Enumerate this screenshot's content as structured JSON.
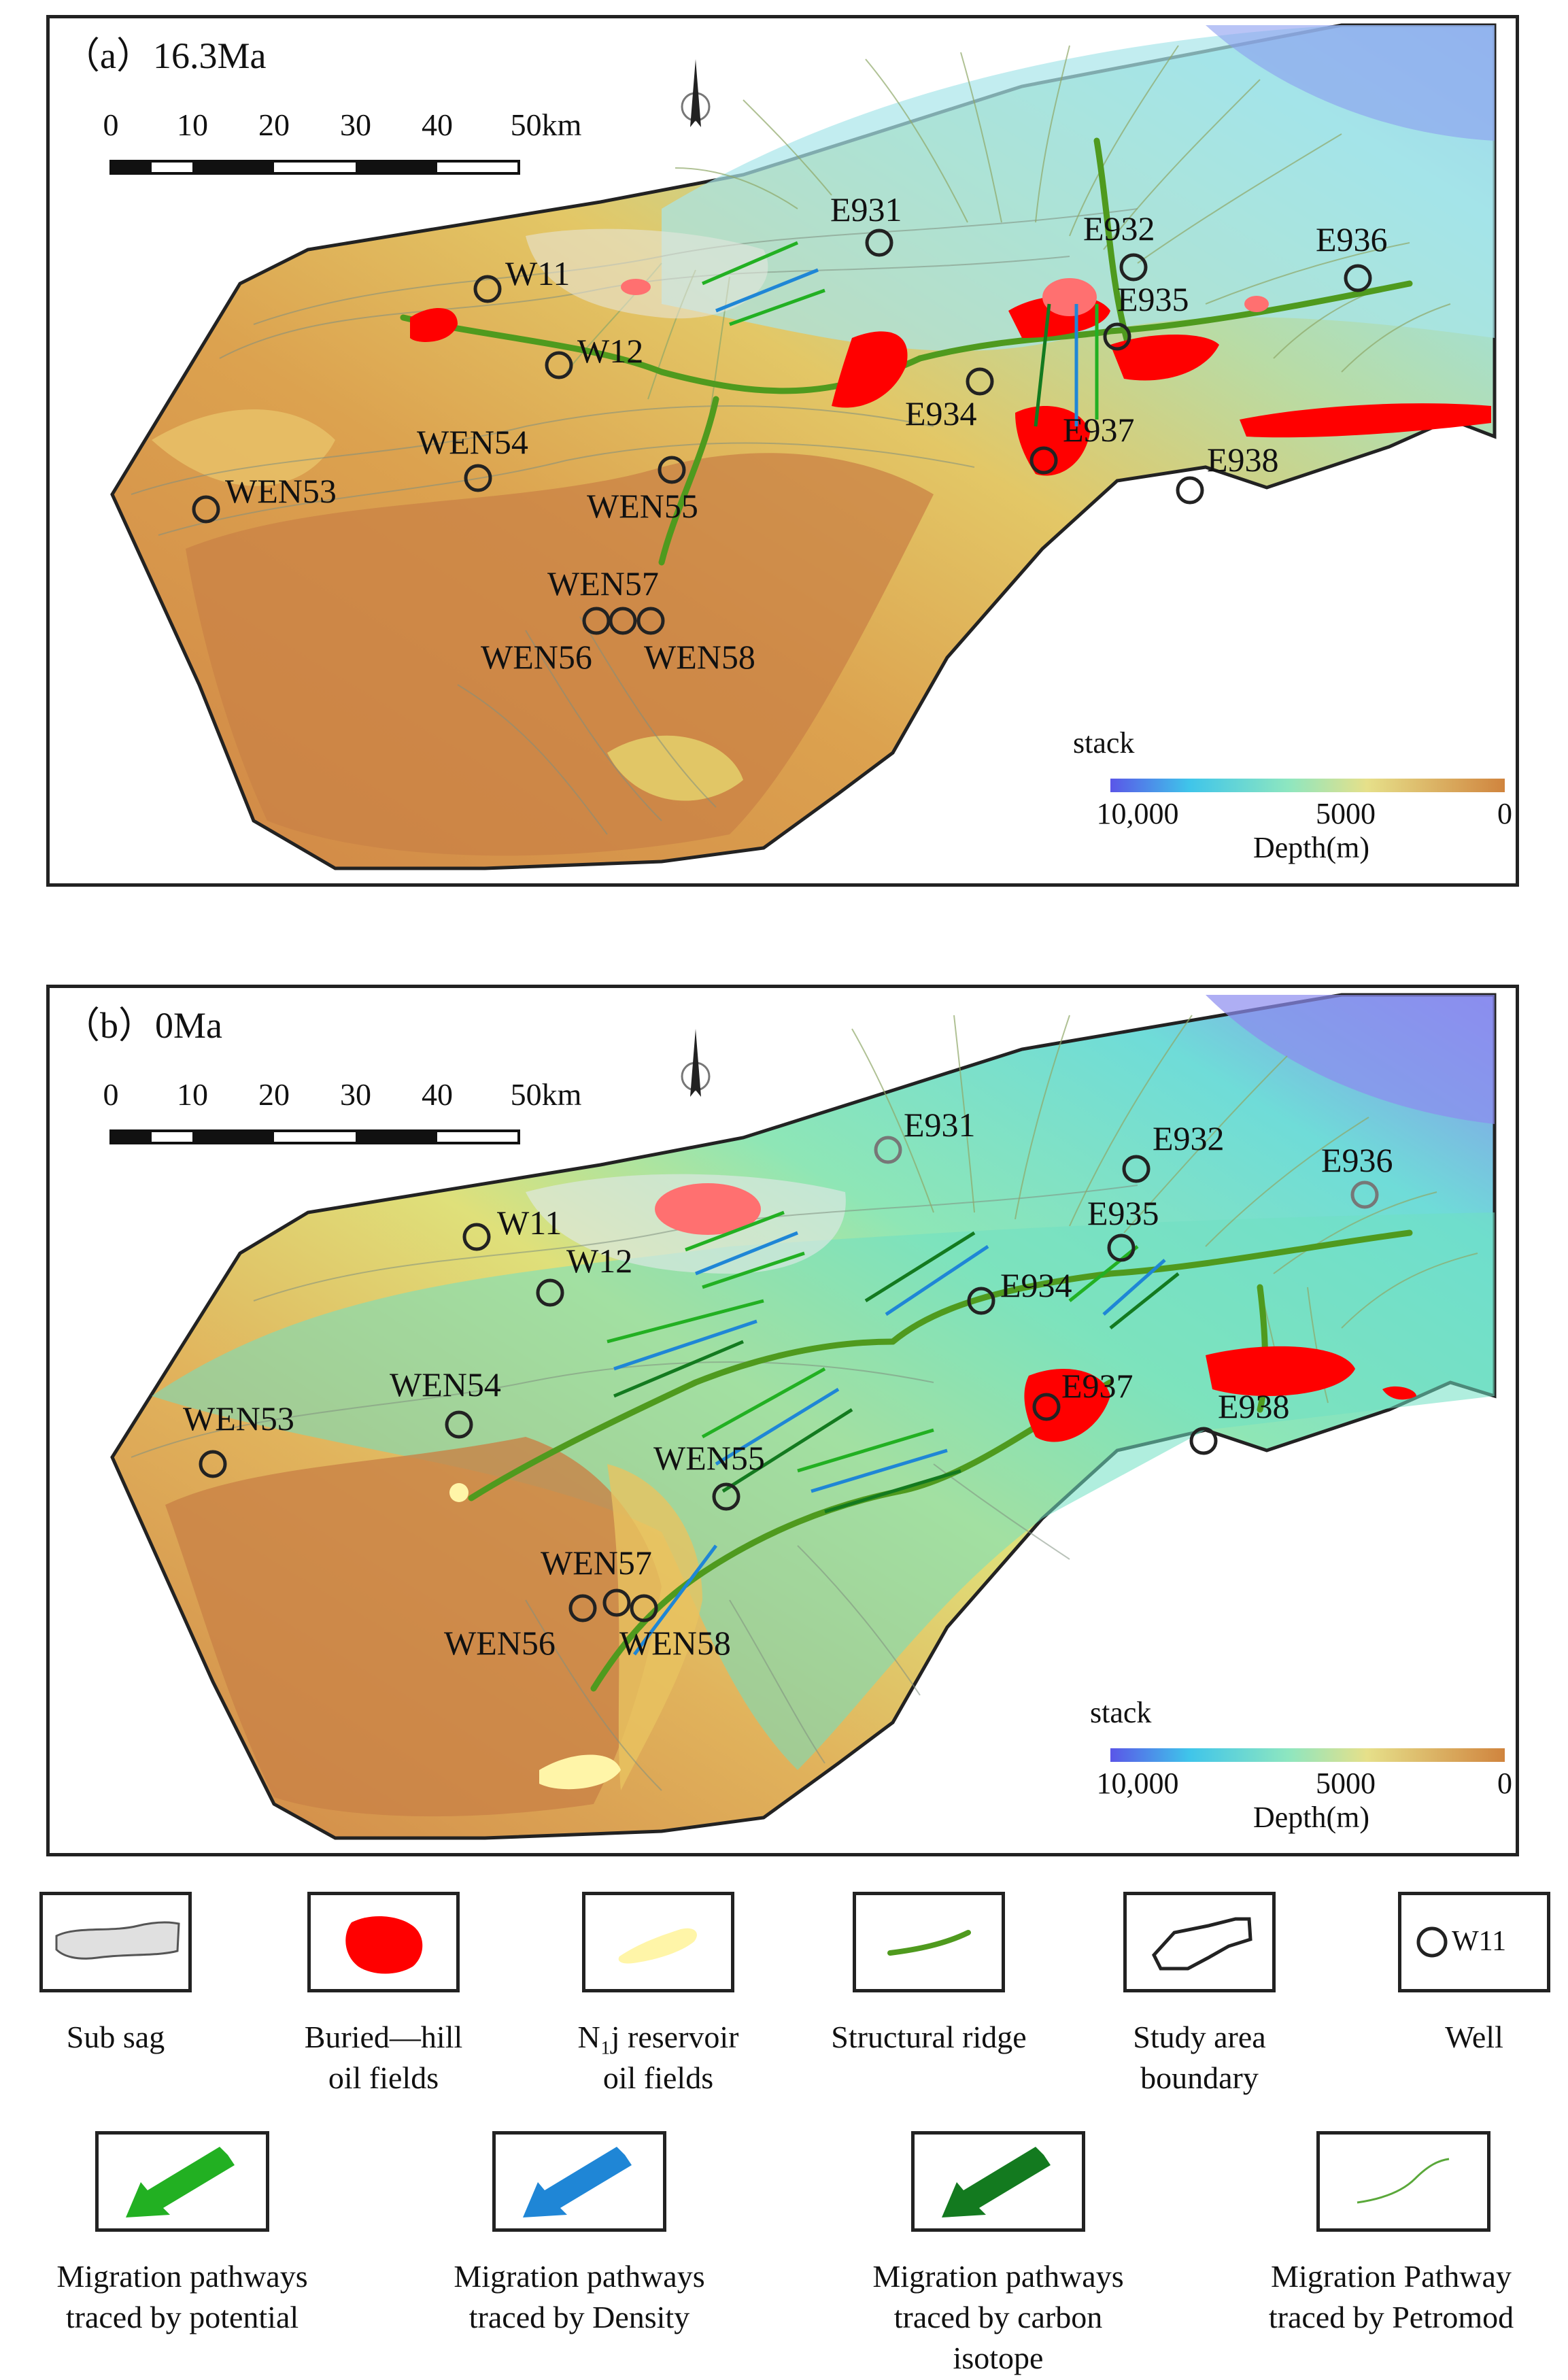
{
  "panels": [
    {
      "id": "a",
      "title": "（a）16.3Ma",
      "scale_ticks": [
        "0",
        "10",
        "20",
        "30",
        "40",
        "50km"
      ],
      "colorbar": {
        "title": "stack",
        "ticks": [
          "10,000",
          "5000",
          "0"
        ],
        "label": "Depth(m)"
      },
      "wells": [
        "WEN53",
        "WEN54",
        "WEN55",
        "WEN56",
        "WEN57",
        "WEN58",
        "W11",
        "W12",
        "E931",
        "E932",
        "E934",
        "E935",
        "E936",
        "E937",
        "E938"
      ]
    },
    {
      "id": "b",
      "title": "（b）0Ma",
      "scale_ticks": [
        "0",
        "10",
        "20",
        "30",
        "40",
        "50km"
      ],
      "colorbar": {
        "title": "stack",
        "ticks": [
          "10,000",
          "5000",
          "0"
        ],
        "label": "Depth(m)"
      },
      "wells": [
        "WEN53",
        "WEN54",
        "WEN55",
        "WEN56",
        "WEN57",
        "WEN58",
        "W11",
        "W12",
        "E931",
        "E932",
        "E934",
        "E935",
        "E936",
        "E937",
        "E938"
      ]
    }
  ],
  "colors": {
    "buried_hill_oil": "#ff0000",
    "nj_reservoir_oil": "#fff5a8",
    "structural_ridge": "#4f9a1e",
    "potential_arrow": "#22b022",
    "density_arrow": "#1f86d6",
    "carbon_isotope_arrow": "#137a1f",
    "petromod_line": "#5aa83a",
    "depth_shallow": "#d4874a",
    "depth_deep": "#6a5ee8"
  },
  "legend": [
    {
      "label": "Sub sag",
      "icon": "sub-sag-icon"
    },
    {
      "label": "Buried—hill\noil fields",
      "icon": "buried-hill-icon"
    },
    {
      "label": "N₁j reservoir\noil fields",
      "icon": "nj-reservoir-icon"
    },
    {
      "label": "Structural ridge",
      "icon": "structural-ridge-icon"
    },
    {
      "label": "Study area\nboundary",
      "icon": "boundary-icon"
    },
    {
      "label": "Well",
      "icon": "well-icon",
      "sample": "W11"
    },
    {
      "label": "Migration pathways\ntraced by potential",
      "icon": "green-arrow-icon"
    },
    {
      "label": "Migration pathways\ntraced by Density",
      "icon": "blue-arrow-icon"
    },
    {
      "label": "Migration pathways\ntraced by carbon\nisotope",
      "icon": "darkgreen-arrow-icon"
    },
    {
      "label": "Migration Pathway\ntraced  by  Petromod",
      "icon": "petromod-line-icon"
    }
  ]
}
